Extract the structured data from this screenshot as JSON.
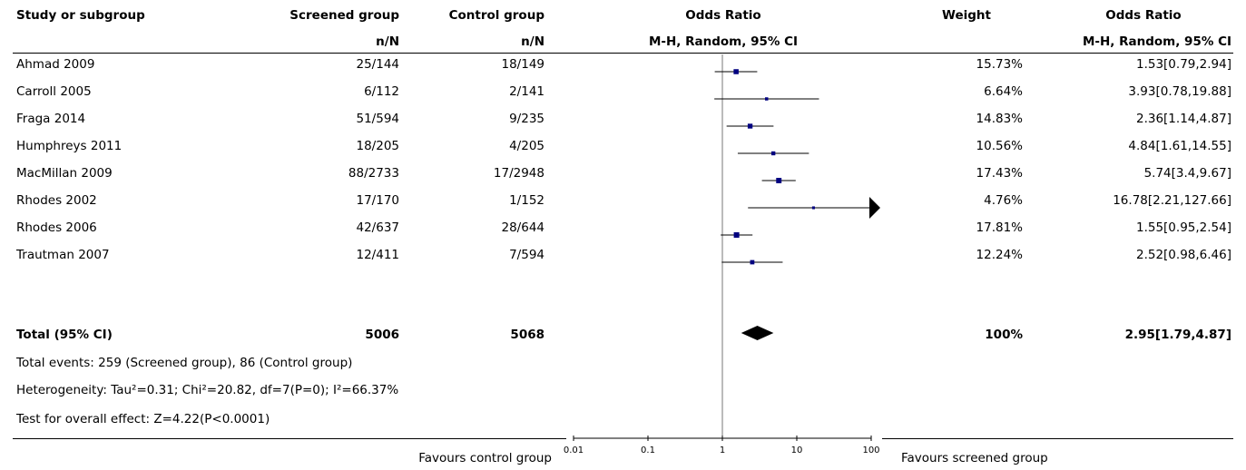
{
  "header": {
    "study_col": "Study or subgroup",
    "screened_col": "Screened group",
    "screened_sub": "n/N",
    "control_col": "Control group",
    "control_sub": "n/N",
    "or_col": "Odds Ratio",
    "or_sub": "M-H, Random, 95% CI",
    "weight_col": "Weight",
    "or_col2": "Odds Ratio",
    "or_sub2": "M-H, Random, 95% CI"
  },
  "studies": [
    {
      "name": "Ahmad 2009",
      "screened": "25/144",
      "control": "18/149",
      "weight": "15.73%",
      "ci_text": "1.53[0.79,2.94]"
    },
    {
      "name": "Carroll 2005",
      "screened": "6/112",
      "control": "2/141",
      "weight": "6.64%",
      "ci_text": "3.93[0.78,19.88]"
    },
    {
      "name": "Fraga 2014",
      "screened": "51/594",
      "control": "9/235",
      "weight": "14.83%",
      "ci_text": "2.36[1.14,4.87]"
    },
    {
      "name": "Humphreys 2011",
      "screened": "18/205",
      "control": "4/205",
      "weight": "10.56%",
      "ci_text": "4.84[1.61,14.55]"
    },
    {
      "name": "MacMillan 2009",
      "screened": "88/2733",
      "control": "17/2948",
      "weight": "17.43%",
      "ci_text": "5.74[3.4,9.67]"
    },
    {
      "name": "Rhodes 2002",
      "screened": "17/170",
      "control": "1/152",
      "weight": "4.76%",
      "ci_text": "16.78[2.21,127.66]"
    },
    {
      "name": "Rhodes 2006",
      "screened": "42/637",
      "control": "28/644",
      "weight": "17.81%",
      "ci_text": "1.55[0.95,2.54]"
    },
    {
      "name": "Trautman 2007",
      "screened": "12/411",
      "control": "7/594",
      "weight": "12.24%",
      "ci_text": "2.52[0.98,6.46]"
    }
  ],
  "total": {
    "label": "Total (95% CI)",
    "screened": "5006",
    "control": "5068",
    "weight": "100%",
    "ci_text": "2.95[1.79,4.87]"
  },
  "footer": {
    "events": "Total events: 259 (Screened group), 86 (Control group)",
    "heterogeneity": "Heterogeneity: Tau²=0.31; Chi²=20.82, df=7(P=0); I²=66.37%",
    "overall": "Test for overall effect: Z=4.22(P<0.0001)"
  },
  "axis": {
    "left_label": "Favours control group",
    "right_label": "Favours screened group"
  },
  "chart_data": {
    "type": "forest",
    "scale": "log",
    "xlim": [
      0.01,
      100
    ],
    "ticks": [
      {
        "value": 0.01,
        "label": "0.01"
      },
      {
        "value": 0.1,
        "label": "0.1"
      },
      {
        "value": 1,
        "label": "1"
      },
      {
        "value": 10,
        "label": "10"
      },
      {
        "value": 100,
        "label": "100"
      }
    ],
    "null_line": 1,
    "studies": [
      {
        "name": "Ahmad 2009",
        "or": 1.53,
        "lo": 0.79,
        "hi": 2.94,
        "weight": 15.73
      },
      {
        "name": "Carroll 2005",
        "or": 3.93,
        "lo": 0.78,
        "hi": 19.88,
        "weight": 6.64
      },
      {
        "name": "Fraga 2014",
        "or": 2.36,
        "lo": 1.14,
        "hi": 4.87,
        "weight": 14.83
      },
      {
        "name": "Humphreys 2011",
        "or": 4.84,
        "lo": 1.61,
        "hi": 14.55,
        "weight": 10.56
      },
      {
        "name": "MacMillan 2009",
        "or": 5.74,
        "lo": 3.4,
        "hi": 9.67,
        "weight": 17.43
      },
      {
        "name": "Rhodes 2002",
        "or": 16.78,
        "lo": 2.21,
        "hi": 127.66,
        "weight": 4.76
      },
      {
        "name": "Rhodes 2006",
        "or": 1.55,
        "lo": 0.95,
        "hi": 2.54,
        "weight": 17.81
      },
      {
        "name": "Trautman 2007",
        "or": 2.52,
        "lo": 0.98,
        "hi": 6.46,
        "weight": 12.24
      }
    ],
    "total": {
      "or": 2.95,
      "lo": 1.79,
      "hi": 4.87
    },
    "colors": {
      "marker": "#000080",
      "line": "#000000",
      "null_line": "#777777"
    }
  }
}
